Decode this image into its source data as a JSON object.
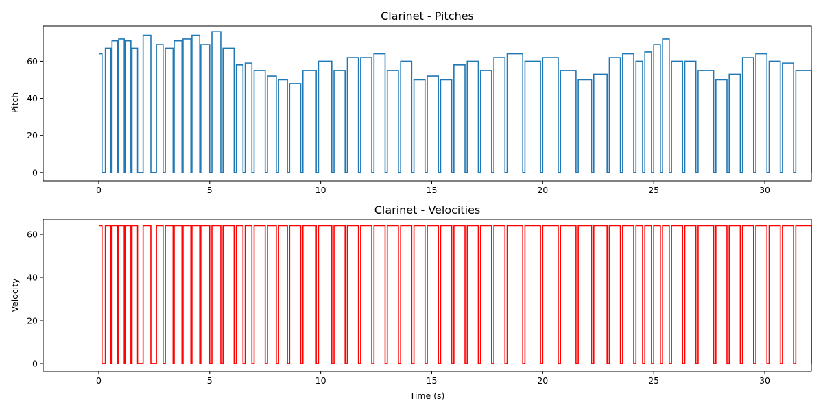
{
  "chart_data": [
    {
      "type": "line",
      "title": "Clarinet - Pitches",
      "xlabel": "",
      "ylabel": "Pitch",
      "xlim": [
        -2.5,
        32.1
      ],
      "ylim": [
        -4.5,
        79
      ],
      "xticks": [
        "0",
        "5",
        "10",
        "15",
        "20",
        "25",
        "30"
      ],
      "yticks": [
        "0",
        "20",
        "40",
        "60"
      ],
      "color": "#1f77b4",
      "legend": "none",
      "grid": false,
      "note_times": [
        0,
        0.3,
        0.6,
        0.9,
        1.2,
        1.5,
        2.0,
        2.6,
        3.0,
        3.4,
        3.8,
        4.2,
        4.6,
        5.1,
        5.6,
        6.2,
        6.6,
        7.0,
        7.6,
        8.1,
        8.6,
        9.2,
        9.9,
        10.6,
        11.2,
        11.8,
        12.4,
        13.0,
        13.6,
        14.2,
        14.8,
        15.4,
        16.0,
        16.6,
        17.2,
        17.8,
        18.4,
        19.2,
        20.0,
        20.8,
        21.6,
        22.3,
        23.0,
        23.6,
        24.2,
        24.6,
        25.0,
        25.4,
        25.8,
        26.4,
        27.0,
        27.8,
        28.4,
        29.0,
        29.6,
        30.2,
        30.8,
        31.4
      ],
      "note_pitches": [
        64,
        67,
        71,
        72,
        71,
        67,
        74,
        69,
        67,
        71,
        72,
        74,
        69,
        76,
        67,
        58,
        59,
        55,
        52,
        50,
        48,
        55,
        60,
        55,
        62,
        62,
        64,
        55,
        60,
        50,
        52,
        50,
        58,
        60,
        55,
        62,
        64,
        60,
        62,
        55,
        50,
        53,
        62,
        64,
        60,
        65,
        69,
        72,
        60,
        60,
        55,
        50,
        53,
        62,
        64,
        60,
        59,
        55
      ],
      "note_durations": [
        0.15,
        0.25,
        0.25,
        0.25,
        0.25,
        0.25,
        0.35,
        0.3,
        0.35,
        0.35,
        0.35,
        0.35,
        0.4,
        0.4,
        0.5,
        0.3,
        0.3,
        0.5,
        0.4,
        0.4,
        0.5,
        0.6,
        0.6,
        0.5,
        0.5,
        0.5,
        0.5,
        0.5,
        0.5,
        0.5,
        0.5,
        0.5,
        0.5,
        0.5,
        0.5,
        0.5,
        0.7,
        0.7,
        0.7,
        0.7,
        0.6,
        0.6,
        0.5,
        0.5,
        0.3,
        0.3,
        0.3,
        0.3,
        0.5,
        0.5,
        0.7,
        0.5,
        0.5,
        0.5,
        0.5,
        0.5,
        0.5,
        0.7
      ],
      "end_time": 32.1,
      "end_value": 55
    },
    {
      "type": "line",
      "title": "Clarinet - Velocities",
      "xlabel": "Time (s)",
      "ylabel": "Velocity",
      "xlim": [
        -2.5,
        32.1
      ],
      "ylim": [
        -3.5,
        67
      ],
      "xticks": [
        "0",
        "5",
        "10",
        "15",
        "20",
        "25",
        "30"
      ],
      "yticks": [
        "0",
        "20",
        "40",
        "60"
      ],
      "color": "#ff0000",
      "legend": "none",
      "grid": false,
      "velocity": 64,
      "end_time": 32.1,
      "end_value": 64
    }
  ]
}
